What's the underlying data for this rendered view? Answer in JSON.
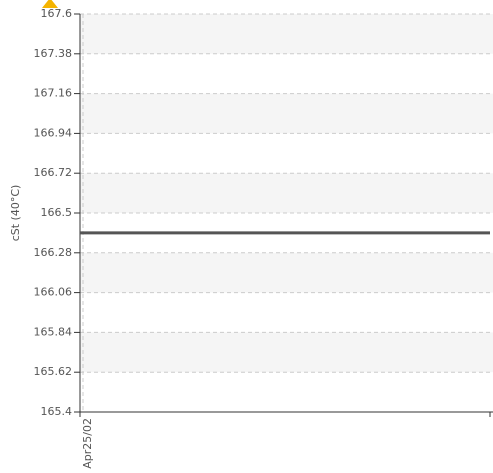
{
  "chart_data": {
    "type": "line",
    "y_label": "cSt (40°C)",
    "categories": [
      "Apr25/02",
      "Apr25/02"
    ],
    "series": [
      {
        "color": "#555555",
        "values": [
          166.39,
          166.39
        ]
      }
    ],
    "ylim": [
      165.4,
      167.6
    ],
    "yticks": [
      165.4,
      165.62,
      165.84,
      166.06,
      166.28,
      166.5,
      166.72,
      166.94,
      167.16,
      167.38,
      167.6
    ],
    "grid": true
  }
}
